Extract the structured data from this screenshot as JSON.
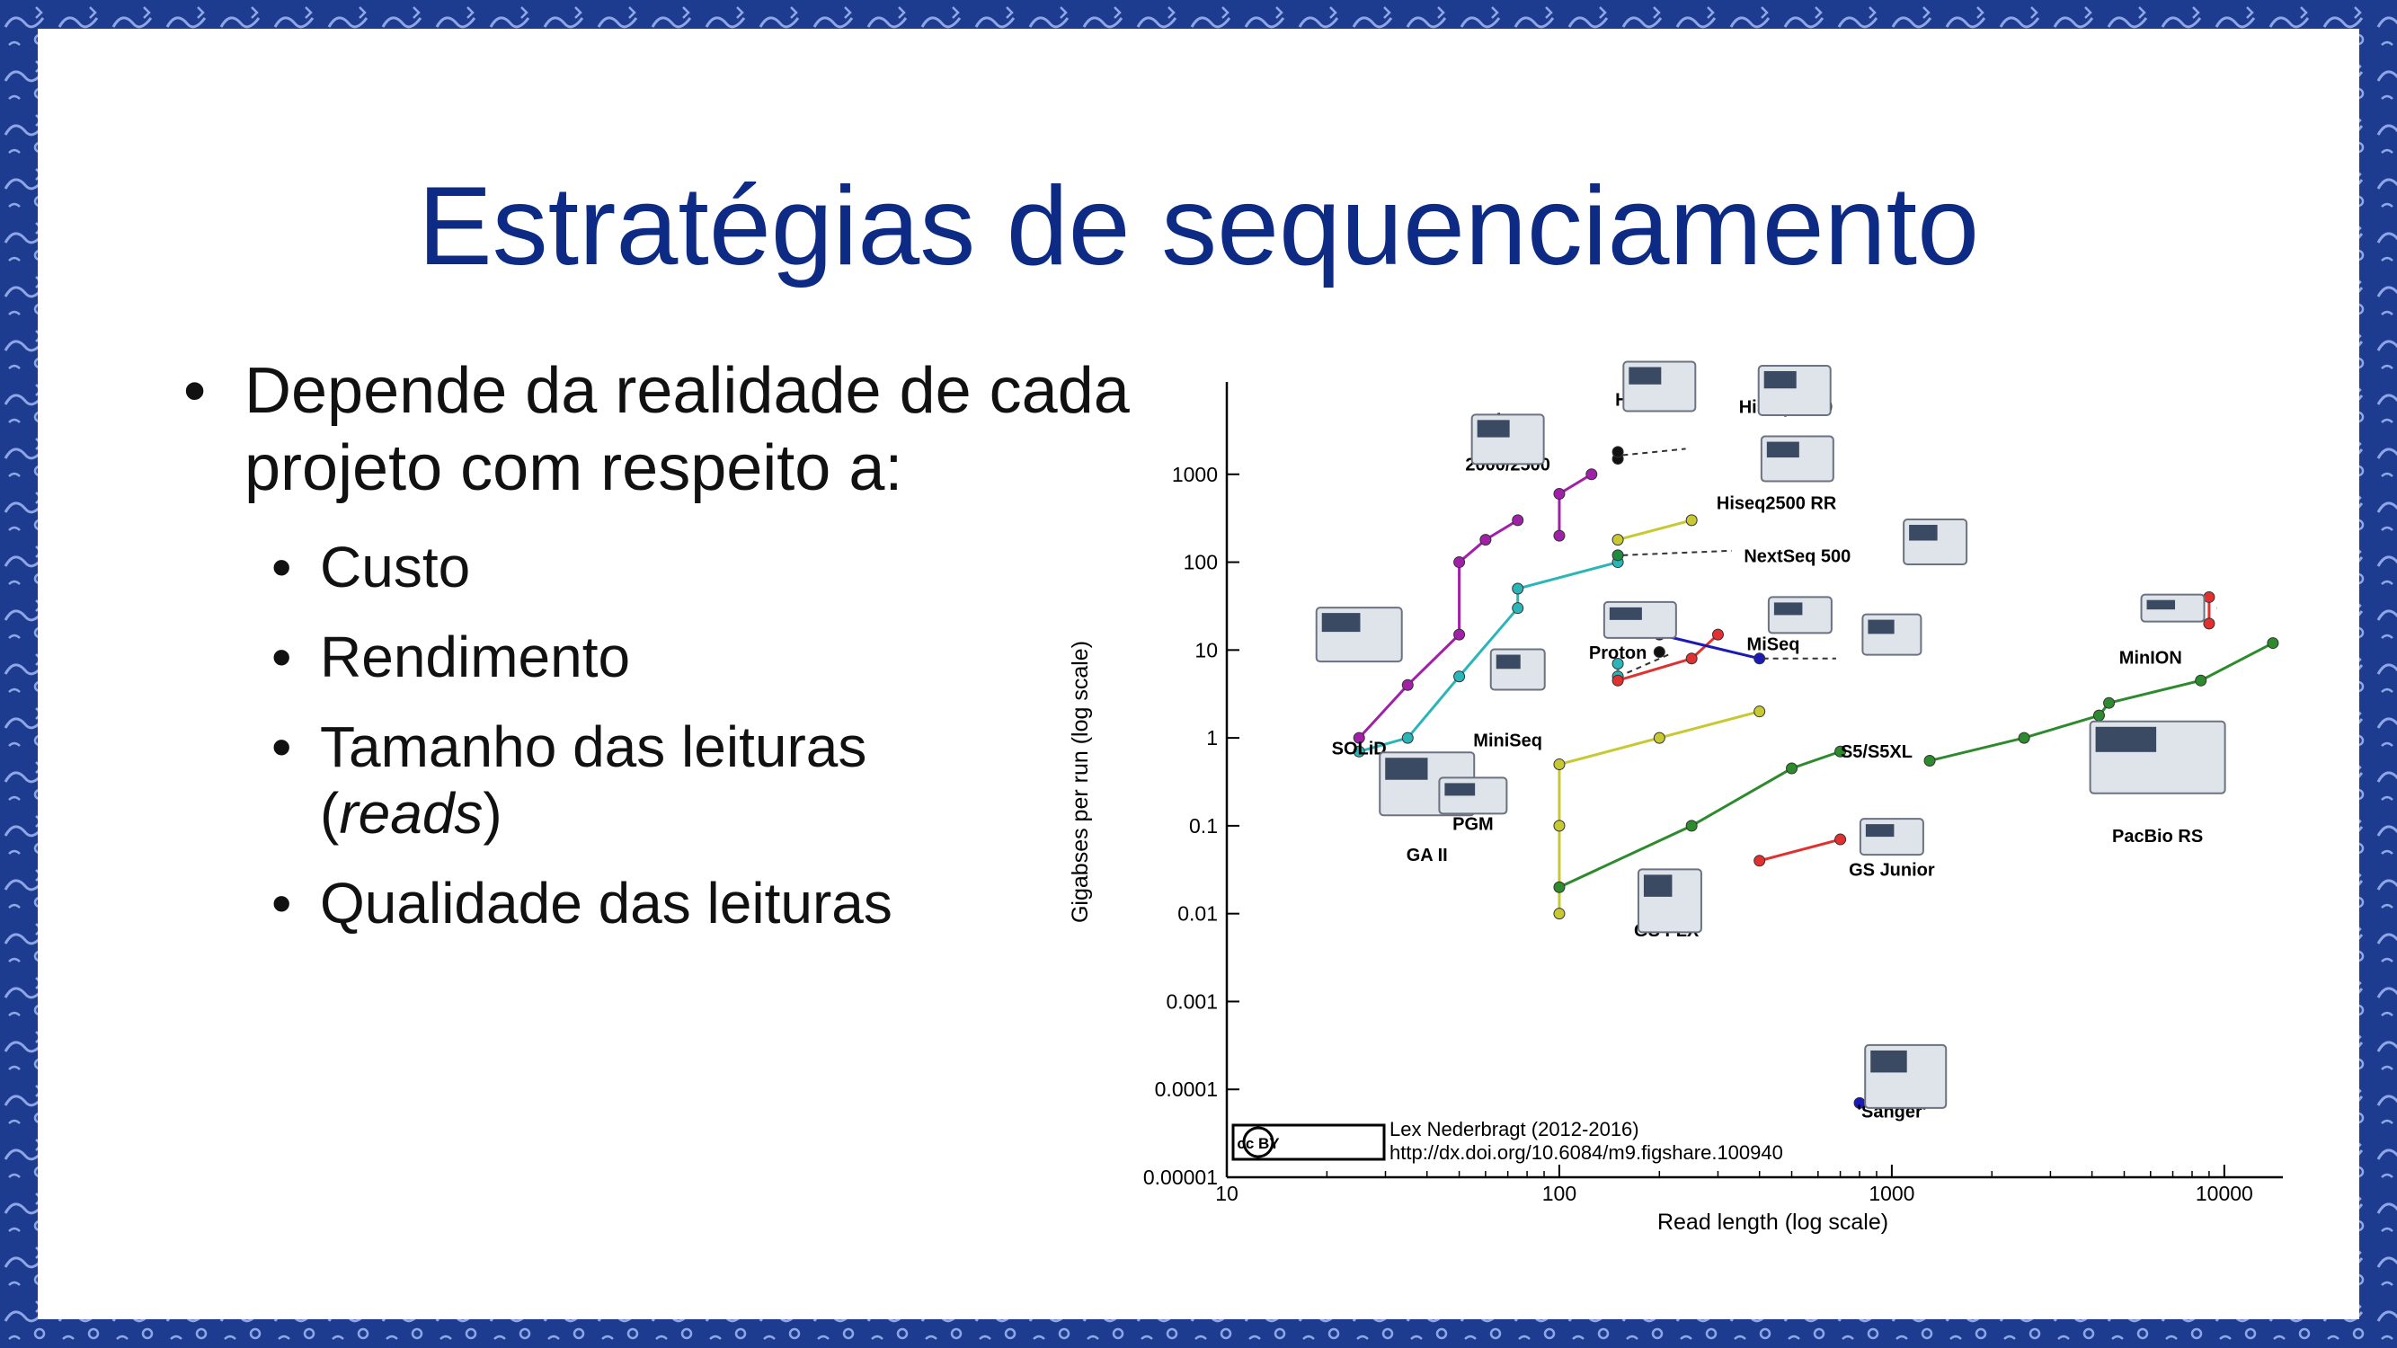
{
  "slide": {
    "title": "Estratégias de sequenciamento",
    "bullet_main": "Depende da realidade de cada projeto com respeito a:",
    "sub_bullets": [
      "Custo",
      "Rendimento",
      "Tamanho das leituras",
      "(",
      "reads",
      ")",
      "Qualidade das leituras"
    ]
  },
  "colors": {
    "frame": "#1d3c8f",
    "title": "#0d2a85",
    "text": "#111111"
  },
  "chart_data": {
    "type": "scatter",
    "xlabel": "Read length (log scale)",
    "ylabel": "Gigabses per run (log scale)",
    "x_scale": "log",
    "y_scale": "log",
    "xlim": [
      10,
      15000
    ],
    "ylim": [
      1e-05,
      10000
    ],
    "x_ticks": [
      "10",
      "100",
      "1000",
      "10000"
    ],
    "y_ticks": [
      "0.00001",
      "0.0001",
      "0.001",
      "0.01",
      "0.1",
      "1",
      "10",
      "100",
      "1000"
    ],
    "series": [
      {
        "color": "#a020a8",
        "points": [
          [
            25,
            1
          ],
          [
            35,
            4
          ],
          [
            50,
            15
          ],
          [
            50,
            100
          ],
          [
            60,
            180
          ],
          [
            75,
            300
          ]
        ]
      },
      {
        "color": "#a020a8",
        "points": [
          [
            100,
            200
          ],
          [
            100,
            600
          ],
          [
            125,
            1000
          ]
        ]
      },
      {
        "color": "#2ab5b8",
        "points": [
          [
            25,
            0.7
          ],
          [
            35,
            1
          ],
          [
            50,
            5
          ],
          [
            75,
            30
          ],
          [
            75,
            50
          ],
          [
            150,
            100
          ]
        ]
      },
      {
        "color": "#2ab5b8",
        "points": [
          [
            150,
            7
          ],
          [
            150,
            5
          ]
        ]
      },
      {
        "color": "#c8c832",
        "points": [
          [
            100,
            0.01
          ],
          [
            100,
            0.1
          ],
          [
            100,
            0.5
          ],
          [
            200,
            1
          ],
          [
            400,
            2
          ]
        ]
      },
      {
        "color": "#c8c832",
        "points": [
          [
            150,
            180
          ],
          [
            250,
            300
          ]
        ]
      },
      {
        "color": "#2d8a2d",
        "points": [
          [
            100,
            0.02
          ],
          [
            250,
            0.1
          ],
          [
            500,
            0.45
          ],
          [
            700,
            0.7
          ]
        ]
      },
      {
        "color": "#2d8a2d",
        "points": [
          [
            1300,
            0.55
          ],
          [
            2500,
            1
          ],
          [
            4200,
            1.8
          ],
          [
            4500,
            2.5
          ],
          [
            8500,
            4.5
          ],
          [
            14000,
            12
          ]
        ]
      },
      {
        "color": "#e03030",
        "points": [
          [
            150,
            4.5
          ],
          [
            250,
            8
          ],
          [
            300,
            15
          ]
        ]
      },
      {
        "color": "#e03030",
        "points": [
          [
            400,
            0.04
          ],
          [
            700,
            0.07
          ]
        ]
      },
      {
        "color": "#e03030",
        "points": [
          [
            9000,
            20
          ],
          [
            9000,
            40
          ]
        ]
      },
      {
        "color": "#1a1ab8",
        "points": [
          [
            200,
            15
          ],
          [
            400,
            8
          ]
        ]
      },
      {
        "color": "#1a1ab8",
        "points": [
          [
            800,
            7e-05
          ]
        ]
      },
      {
        "color": "#111111",
        "points": [
          [
            150,
            1500
          ],
          [
            150,
            1800
          ]
        ]
      },
      {
        "color": "#111111",
        "points": [
          [
            200,
            9.5
          ]
        ]
      },
      {
        "color": "#208a40",
        "points": [
          [
            150,
            120
          ]
        ]
      }
    ],
    "labels": [
      {
        "text": "Hiseq 2000/2500"
      },
      {
        "text": "Hiseq X"
      },
      {
        "text": "Hiseq 4000"
      },
      {
        "text": "Hiseq2500 RR"
      },
      {
        "text": "NextSeq 500"
      },
      {
        "text": "MiSeq"
      },
      {
        "text": "Proton"
      },
      {
        "text": "MiniSeq"
      },
      {
        "text": "S5/S5XL"
      },
      {
        "text": "SOLiD"
      },
      {
        "text": "GA II"
      },
      {
        "text": "PGM"
      },
      {
        "text": "GS FLX"
      },
      {
        "text": "GS Junior"
      },
      {
        "text": "MinION"
      },
      {
        "text": "PacBio RS"
      },
      {
        "text": "'Sanger'"
      }
    ],
    "credit": "Lex Nederbragt (2012-2016)",
    "credit_url": "http://dx.doi.org/10.6084/m9.figshare.100940",
    "license_badge": "cc BY"
  }
}
